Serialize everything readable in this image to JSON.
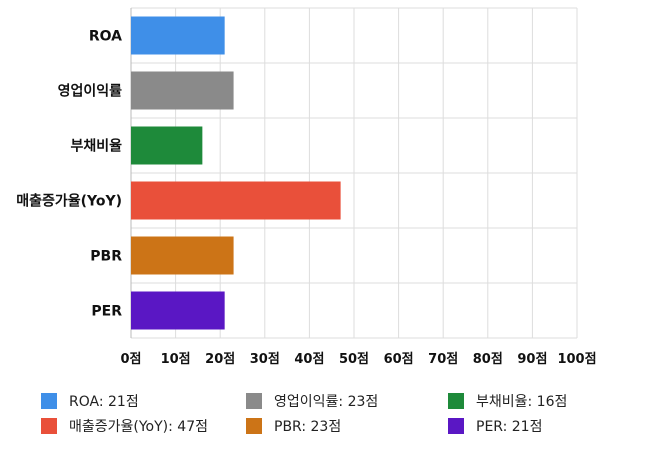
{
  "chart_data": {
    "type": "bar",
    "orientation": "horizontal",
    "categories": [
      "ROA",
      "영업이익률",
      "부채비율",
      "매출증가율(YoY)",
      "PBR",
      "PER"
    ],
    "values": [
      21,
      23,
      16,
      47,
      23,
      21
    ],
    "colors": [
      "#3f8fe8",
      "#8a8a8a",
      "#1e8a3a",
      "#e9503a",
      "#cc7417",
      "#5a17c4"
    ],
    "xlim": [
      0,
      100
    ],
    "xticks": [
      "0점",
      "10점",
      "20점",
      "30점",
      "40점",
      "50점",
      "60점",
      "70점",
      "80점",
      "90점",
      "100점"
    ],
    "grid": true,
    "legend_position": "bottom",
    "legend": [
      "ROA: 21점",
      "영업이익률: 23점",
      "부채비율: 16점",
      "매출증가율(YoY): 47점",
      "PBR: 23점",
      "PER: 21점"
    ]
  }
}
